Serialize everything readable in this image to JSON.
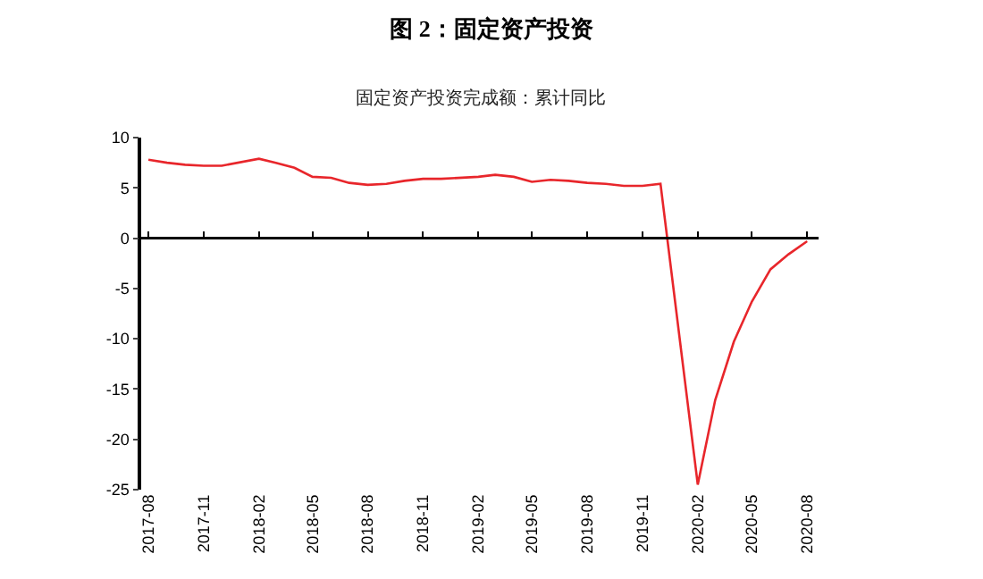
{
  "chart_data": {
    "type": "line",
    "title": "图 2：固定资产投资",
    "subtitle": "固定资产投资完成额：累计同比",
    "x": [
      "2017-08",
      "2017-09",
      "2017-10",
      "2017-11",
      "2017-12",
      "2018-02",
      "2018-03",
      "2018-04",
      "2018-05",
      "2018-06",
      "2018-07",
      "2018-08",
      "2018-09",
      "2018-10",
      "2018-11",
      "2018-12",
      "2019-02",
      "2019-03",
      "2019-04",
      "2019-05",
      "2019-06",
      "2019-07",
      "2019-08",
      "2019-09",
      "2019-10",
      "2019-11",
      "2019-12",
      "2020-02",
      "2020-03",
      "2020-04",
      "2020-05",
      "2020-06",
      "2020-07",
      "2020-08"
    ],
    "series": [
      {
        "color": "#e8262b",
        "values": [
          7.8,
          7.5,
          7.3,
          7.2,
          7.2,
          7.9,
          7.5,
          7.0,
          6.1,
          6.0,
          5.5,
          5.3,
          5.4,
          5.7,
          5.9,
          5.9,
          6.1,
          6.3,
          6.1,
          5.6,
          5.8,
          5.7,
          5.5,
          5.4,
          5.2,
          5.2,
          5.4,
          -24.5,
          -16.1,
          -10.3,
          -6.3,
          -3.1,
          -1.6,
          -0.3
        ]
      }
    ],
    "xlim": [
      "2017-07-20",
      "2020-08-20"
    ],
    "xticks": [
      "2017-08",
      "2017-11",
      "2018-02",
      "2018-05",
      "2018-08",
      "2018-11",
      "2019-02",
      "2019-05",
      "2019-08",
      "2019-11",
      "2020-02",
      "2020-05",
      "2020-08"
    ],
    "ref_lines": [
      {
        "axis": "y",
        "value": 0,
        "color": "#000000",
        "line_style": "solid"
      }
    ],
    "ylim": [
      -25,
      10
    ],
    "yticks": [
      -25,
      -20,
      -15,
      -10,
      -5,
      0,
      5,
      10
    ],
    "grid": false,
    "legend": false,
    "marker": "none",
    "line_style": "solid"
  }
}
